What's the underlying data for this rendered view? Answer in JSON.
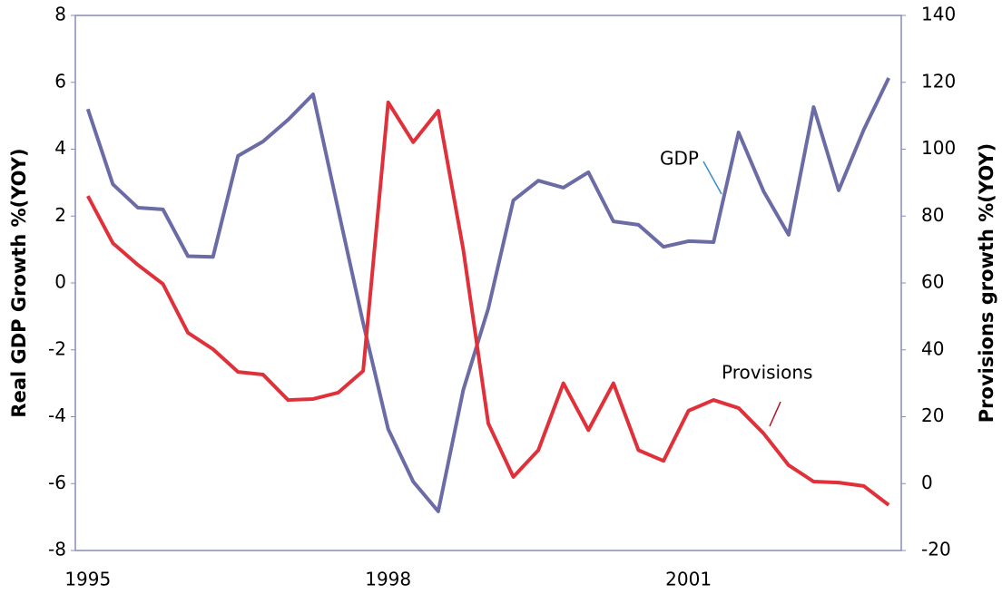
{
  "chart_data": {
    "type": "line",
    "categories": [
      "1995",
      null,
      null,
      null,
      null,
      null,
      null,
      null,
      null,
      null,
      null,
      null,
      "1998",
      null,
      null,
      null,
      null,
      null,
      null,
      null,
      null,
      null,
      null,
      null,
      "2001",
      null,
      null,
      null,
      null,
      null,
      null,
      null,
      null
    ],
    "series": [
      {
        "name": "GDP",
        "color": "#6b6ba6",
        "axis": "y",
        "values": [
          5.2,
          2.95,
          2.25,
          2.2,
          0.8,
          0.78,
          3.8,
          4.23,
          4.88,
          5.64,
          2.2,
          -1.2,
          -4.37,
          -5.94,
          -6.83,
          -3.2,
          -0.76,
          2.47,
          3.06,
          2.85,
          3.31,
          1.84,
          1.74,
          1.08,
          1.25,
          1.22,
          4.5,
          2.74,
          1.44,
          5.26,
          2.77,
          4.58,
          6.13
        ]
      },
      {
        "name": "Provisions",
        "color": "#e0313a",
        "axis": "y2",
        "values": [
          86,
          71.9,
          65.4,
          59.7,
          45.1,
          40.2,
          33.4,
          32.6,
          25,
          25.3,
          27.2,
          33.7,
          114,
          102.1,
          111.5,
          70,
          18,
          2,
          10,
          30,
          16,
          30,
          10,
          6.8,
          21.8,
          25,
          22.6,
          15,
          5.5,
          0.6,
          0.3,
          -0.7,
          -6.4
        ]
      }
    ],
    "y_label": "Real GDP Growth %(YOY)",
    "y2_label": "Provisions growth %(YOY)",
    "ylim": [
      -8,
      8
    ],
    "yticks": [
      -8,
      -6,
      -4,
      -2,
      0,
      2,
      4,
      6,
      8
    ],
    "y2lim": [
      -20,
      140
    ],
    "y2ticks": [
      -20,
      0,
      20,
      40,
      60,
      80,
      100,
      120,
      140
    ],
    "grid": false
  }
}
